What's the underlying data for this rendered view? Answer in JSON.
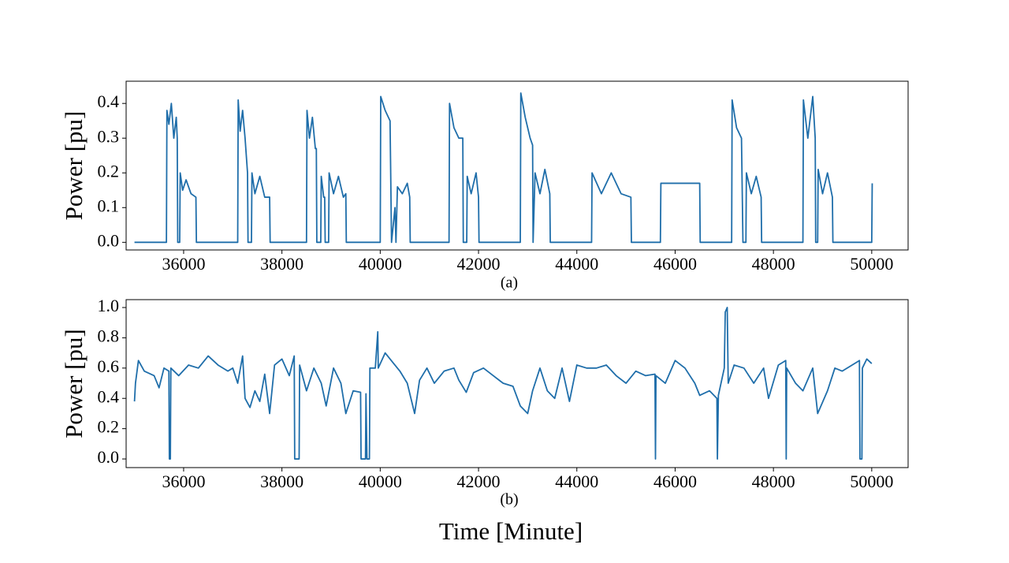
{
  "chart_data": [
    {
      "type": "line",
      "caption": "(a)",
      "y_label": "Power [pu]",
      "x": [
        35000,
        35650,
        35660,
        35700,
        35750,
        35800,
        35850,
        35870,
        35880,
        35920,
        35930,
        35980,
        36050,
        36150,
        36250,
        36260,
        37100,
        37110,
        37150,
        37200,
        37250,
        37300,
        37310,
        37380,
        37390,
        37450,
        37550,
        37650,
        37750,
        37760,
        38500,
        38510,
        38560,
        38620,
        38680,
        38700,
        38710,
        38790,
        38800,
        38850,
        38870,
        38880,
        38950,
        38960,
        39050,
        39150,
        39250,
        39300,
        39310,
        40000,
        40010,
        40100,
        40200,
        40230,
        40300,
        40320,
        40350,
        40450,
        40550,
        40600,
        40610,
        41400,
        41410,
        41500,
        41600,
        41680,
        41690,
        41760,
        41770,
        41850,
        41950,
        42000,
        42010,
        42850,
        42860,
        42950,
        43050,
        43100,
        43110,
        43150,
        43250,
        43350,
        43450,
        43460,
        44300,
        44310,
        44500,
        44700,
        44900,
        45100,
        45110,
        45700,
        45710,
        46500,
        46510,
        47150,
        47160,
        47250,
        47350,
        47380,
        47440,
        47450,
        47550,
        47650,
        47750,
        47760,
        48600,
        48610,
        48700,
        48800,
        48850,
        48860,
        48900,
        48910,
        49000,
        49100,
        49200,
        49210,
        50000,
        50010
      ],
      "series": [
        {
          "color": "#1f6eaa",
          "values": [
            0,
            0,
            0.38,
            0.34,
            0.4,
            0.3,
            0.36,
            0.3,
            0,
            0,
            0.2,
            0.15,
            0.18,
            0.14,
            0.13,
            0,
            0,
            0.41,
            0.32,
            0.38,
            0.3,
            0.2,
            0,
            0,
            0.2,
            0.14,
            0.19,
            0.13,
            0.13,
            0,
            0,
            0.38,
            0.3,
            0.36,
            0.27,
            0.27,
            0,
            0,
            0.19,
            0.13,
            0.13,
            0,
            0,
            0.2,
            0.14,
            0.19,
            0.13,
            0.14,
            0,
            0,
            0.42,
            0.38,
            0.35,
            0,
            0.1,
            0,
            0.16,
            0.14,
            0.17,
            0.13,
            0,
            0,
            0.4,
            0.33,
            0.3,
            0.3,
            0,
            0,
            0.19,
            0.14,
            0.2,
            0.13,
            0,
            0,
            0.43,
            0.36,
            0.3,
            0.28,
            0,
            0.2,
            0.14,
            0.21,
            0.14,
            0,
            0,
            0.2,
            0.14,
            0.2,
            0.14,
            0.13,
            0,
            0,
            0.17,
            0.17,
            0,
            0,
            0.41,
            0.33,
            0.3,
            0,
            0,
            0.2,
            0.14,
            0.19,
            0.13,
            0,
            0,
            0.41,
            0.3,
            0.42,
            0.3,
            0,
            0,
            0.21,
            0.14,
            0.2,
            0.13,
            0,
            0,
            0.17
          ]
        }
      ],
      "xlim": [
        34830,
        50740
      ],
      "ylim": [
        -0.022,
        0.464
      ],
      "xticks": [
        36000,
        38000,
        40000,
        42000,
        44000,
        46000,
        48000,
        50000
      ],
      "yticks": [
        {
          "value": 0,
          "label": "0.0"
        },
        0.1,
        0.2,
        0.3,
        0.4
      ]
    },
    {
      "type": "line",
      "caption": "(b)",
      "y_label": "Power [pu]",
      "x": [
        35000,
        35020,
        35080,
        35200,
        35400,
        35500,
        35600,
        35700,
        35710,
        35730,
        35740,
        35900,
        36100,
        36300,
        36500,
        36700,
        36900,
        37000,
        37100,
        37200,
        37250,
        37350,
        37450,
        37550,
        37650,
        37750,
        37850,
        38000,
        38150,
        38250,
        38260,
        38350,
        38360,
        38500,
        38650,
        38800,
        38900,
        39050,
        39200,
        39300,
        39450,
        39600,
        39610,
        39700,
        39710,
        39730,
        39780,
        39790,
        39900,
        39950,
        39960,
        40100,
        40250,
        40400,
        40550,
        40700,
        40800,
        40950,
        41100,
        41300,
        41500,
        41600,
        41750,
        41900,
        42100,
        42300,
        42500,
        42700,
        42850,
        43000,
        43100,
        43250,
        43400,
        43550,
        43700,
        43850,
        44000,
        44200,
        44400,
        44600,
        44800,
        45000,
        45200,
        45400,
        45590,
        45600,
        45610,
        45800,
        46000,
        46200,
        46400,
        46500,
        46700,
        46850,
        46860,
        46880,
        47000,
        47020,
        47060,
        47080,
        47200,
        47400,
        47600,
        47800,
        47900,
        48100,
        48250,
        48260,
        48270,
        48450,
        48600,
        48800,
        48900,
        49100,
        49250,
        49400,
        49600,
        49750,
        49760,
        49800,
        49810,
        49900,
        50000
      ],
      "series": [
        {
          "color": "#1f6eaa",
          "values": [
            0.38,
            0.5,
            0.65,
            0.58,
            0.55,
            0.47,
            0.6,
            0.58,
            0,
            0,
            0.6,
            0.55,
            0.62,
            0.6,
            0.68,
            0.62,
            0.58,
            0.6,
            0.5,
            0.68,
            0.4,
            0.34,
            0.45,
            0.38,
            0.56,
            0.3,
            0.62,
            0.66,
            0.55,
            0.68,
            0,
            0,
            0.62,
            0.45,
            0.6,
            0.5,
            0.35,
            0.6,
            0.5,
            0.3,
            0.45,
            0.44,
            0,
            0,
            0.43,
            0,
            0,
            0.6,
            0.6,
            0.84,
            0.6,
            0.7,
            0.64,
            0.58,
            0.5,
            0.3,
            0.52,
            0.6,
            0.5,
            0.58,
            0.6,
            0.52,
            0.44,
            0.57,
            0.6,
            0.55,
            0.5,
            0.48,
            0.35,
            0.3,
            0.45,
            0.6,
            0.45,
            0.4,
            0.6,
            0.38,
            0.62,
            0.6,
            0.6,
            0.62,
            0.55,
            0.5,
            0.58,
            0.55,
            0.56,
            0,
            0.55,
            0.5,
            0.65,
            0.6,
            0.5,
            0.42,
            0.45,
            0.4,
            0,
            0.42,
            0.6,
            0.97,
            1.0,
            0.5,
            0.62,
            0.6,
            0.5,
            0.6,
            0.4,
            0.62,
            0.65,
            0,
            0.6,
            0.5,
            0.45,
            0.6,
            0.3,
            0.45,
            0.6,
            0.58,
            0.62,
            0.65,
            0,
            0,
            0.6,
            0.66,
            0.63
          ]
        }
      ],
      "xlim": [
        34830,
        50740
      ],
      "ylim": [
        -0.057,
        1.052
      ],
      "xticks": [
        36000,
        38000,
        40000,
        42000,
        44000,
        46000,
        48000,
        50000
      ],
      "yticks": [
        {
          "value": 0,
          "label": "0.0"
        },
        0.2,
        0.4,
        0.6,
        0.8,
        {
          "value": 1,
          "label": "1.0"
        }
      ]
    }
  ],
  "x_label": "Time [Minute]"
}
